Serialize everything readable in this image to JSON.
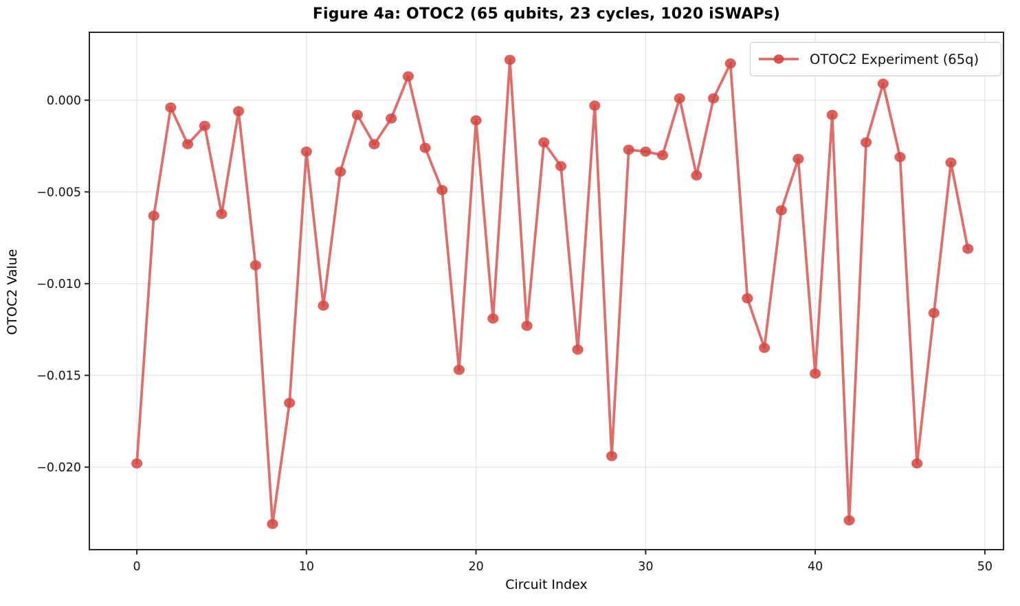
{
  "chart_data": {
    "type": "line",
    "title": "Figure 4a: OTOC2 (65 qubits, 23 cycles, 1020 iSWAPs)",
    "xlabel": "Circuit Index",
    "ylabel": "OTOC2 Value",
    "legend_entries": [
      "OTOC2 Experiment (65q)"
    ],
    "legend_position": "upper right",
    "grid": true,
    "x": [
      0,
      1,
      2,
      3,
      4,
      5,
      6,
      7,
      8,
      9,
      10,
      11,
      12,
      13,
      14,
      15,
      16,
      17,
      18,
      19,
      20,
      21,
      22,
      23,
      24,
      25,
      26,
      27,
      28,
      29,
      30,
      31,
      32,
      33,
      34,
      35,
      36,
      37,
      38,
      39,
      40,
      41,
      42,
      43,
      44,
      45,
      46,
      47,
      48,
      49
    ],
    "series": [
      {
        "name": "OTOC2 Experiment (65q)",
        "values": [
          -0.0198,
          -0.0063,
          -0.0004,
          -0.0024,
          -0.0014,
          -0.0062,
          -0.0006,
          -0.009,
          -0.0231,
          -0.0165,
          -0.0028,
          -0.0112,
          -0.0039,
          -0.0008,
          -0.0024,
          -0.001,
          0.0013,
          -0.0026,
          -0.0049,
          -0.0147,
          -0.0011,
          -0.0119,
          0.0022,
          -0.0123,
          -0.0023,
          -0.0036,
          -0.0136,
          -0.0003,
          -0.0194,
          -0.0027,
          -0.0028,
          -0.003,
          0.0001,
          -0.0041,
          0.0001,
          0.002,
          -0.0108,
          -0.0135,
          -0.006,
          -0.0032,
          -0.0149,
          -0.0008,
          -0.0229,
          -0.0023,
          0.0009,
          -0.0031,
          -0.0198,
          -0.0116,
          -0.0034,
          -0.0081
        ]
      }
    ],
    "xlim": [
      -2.8,
      51.1
    ],
    "ylim": [
      -0.0245,
      0.0037
    ],
    "xticks": [
      0,
      10,
      20,
      30,
      40,
      50
    ],
    "xtick_labels": [
      "0",
      "10",
      "20",
      "30",
      "40",
      "50"
    ],
    "yticks": [
      0.0,
      -0.005,
      -0.01,
      -0.015,
      -0.02
    ],
    "ytick_labels": [
      "0.000",
      "−0.005",
      "−0.010",
      "−0.015",
      "−0.020"
    ],
    "colors": {
      "line": "#d9534f",
      "marker_fill": "#d4453f",
      "grid": "#e4e4e4",
      "spine": "#262626",
      "tick_text": "#111111"
    }
  }
}
